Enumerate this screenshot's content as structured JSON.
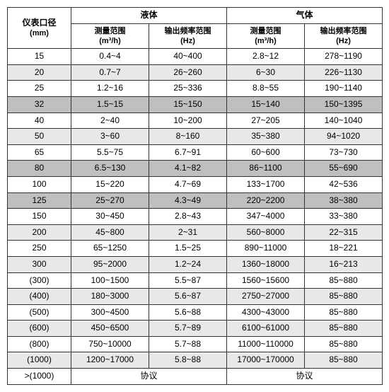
{
  "header": {
    "diameter_label": "仪表口径",
    "diameter_unit": "(mm)",
    "liquid_label": "液体",
    "gas_label": "气体",
    "measure_range_label": "测量范围",
    "measure_range_unit": "(m³/h)",
    "freq_range_label": "输出频率范围",
    "freq_range_unit": "(Hz)"
  },
  "colors": {
    "row_white": "#ffffff",
    "row_light": "#e8e8e8",
    "row_dark": "#bfbfbf",
    "border": "#333333",
    "text": "#000000"
  },
  "rows": [
    {
      "d": "15",
      "lm": "0.4~4",
      "lf": "40~400",
      "gm": "2.8~12",
      "gf": "278~1190",
      "bg": "#ffffff"
    },
    {
      "d": "20",
      "lm": "0.7~7",
      "lf": "26~260",
      "gm": "6~30",
      "gf": "226~1130",
      "bg": "#e8e8e8"
    },
    {
      "d": "25",
      "lm": "1.2~16",
      "lf": "25~336",
      "gm": "8.8~55",
      "gf": "190~1140",
      "bg": "#ffffff"
    },
    {
      "d": "32",
      "lm": "1.5~15",
      "lf": "15~150",
      "gm": "15~140",
      "gf": "150~1395",
      "bg": "#bfbfbf"
    },
    {
      "d": "40",
      "lm": "2~40",
      "lf": "10~200",
      "gm": "27~205",
      "gf": "140~1040",
      "bg": "#ffffff"
    },
    {
      "d": "50",
      "lm": "3~60",
      "lf": "8~160",
      "gm": "35~380",
      "gf": "94~1020",
      "bg": "#e8e8e8"
    },
    {
      "d": "65",
      "lm": "5.5~75",
      "lf": "6.7~91",
      "gm": "60~600",
      "gf": "73~730",
      "bg": "#ffffff"
    },
    {
      "d": "80",
      "lm": "6.5~130",
      "lf": "4.1~82",
      "gm": "86~1100",
      "gf": "55~690",
      "bg": "#bfbfbf"
    },
    {
      "d": "100",
      "lm": "15~220",
      "lf": "4.7~69",
      "gm": "133~1700",
      "gf": "42~536",
      "bg": "#ffffff"
    },
    {
      "d": "125",
      "lm": "25~270",
      "lf": "4.3~49",
      "gm": "220~2200",
      "gf": "38~380",
      "bg": "#bfbfbf"
    },
    {
      "d": "150",
      "lm": "30~450",
      "lf": "2.8~43",
      "gm": "347~4000",
      "gf": "33~380",
      "bg": "#ffffff"
    },
    {
      "d": "200",
      "lm": "45~800",
      "lf": "2~31",
      "gm": "560~8000",
      "gf": "22~315",
      "bg": "#e8e8e8"
    },
    {
      "d": "250",
      "lm": "65~1250",
      "lf": "1.5~25",
      "gm": "890~11000",
      "gf": "18~221",
      "bg": "#ffffff"
    },
    {
      "d": "300",
      "lm": "95~2000",
      "lf": "1.2~24",
      "gm": "1360~18000",
      "gf": "16~213",
      "bg": "#e8e8e8"
    },
    {
      "d": "(300)",
      "lm": "100~1500",
      "lf": "5.5~87",
      "gm": "1560~15600",
      "gf": "85~880",
      "bg": "#ffffff"
    },
    {
      "d": "(400)",
      "lm": "180~3000",
      "lf": "5.6~87",
      "gm": "2750~27000",
      "gf": "85~880",
      "bg": "#e8e8e8"
    },
    {
      "d": "(500)",
      "lm": "300~4500",
      "lf": "5.6~88",
      "gm": "4300~43000",
      "gf": "85~880",
      "bg": "#ffffff"
    },
    {
      "d": "(600)",
      "lm": "450~6500",
      "lf": "5.7~89",
      "gm": "6100~61000",
      "gf": "85~880",
      "bg": "#e8e8e8"
    },
    {
      "d": "(800)",
      "lm": "750~10000",
      "lf": "5.7~88",
      "gm": "11000~110000",
      "gf": "85~880",
      "bg": "#ffffff"
    },
    {
      "d": "(1000)",
      "lm": "1200~17000",
      "lf": "5.8~88",
      "gm": "17000~170000",
      "gf": "85~880",
      "bg": "#e8e8e8"
    }
  ],
  "footer": {
    "d": ">(1000)",
    "liquid": "协议",
    "gas": "协议",
    "bg": "#ffffff"
  }
}
